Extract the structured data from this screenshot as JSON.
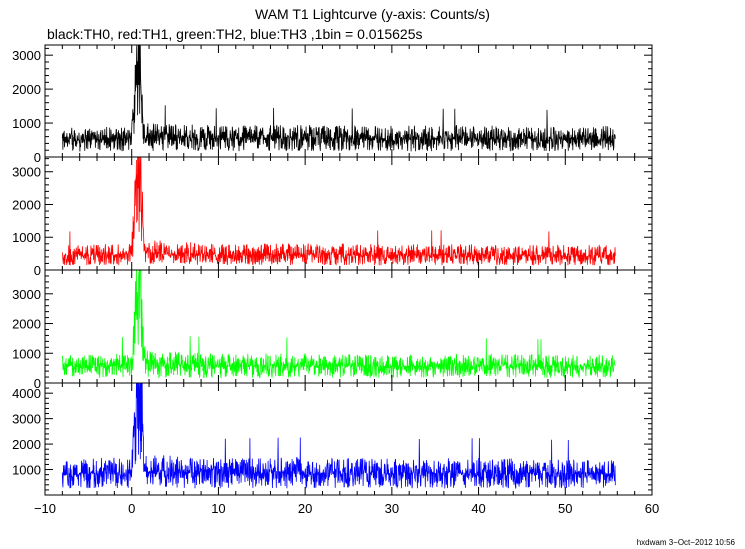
{
  "chart_data": {
    "type": "line",
    "title": "WAM T1 Lightcurve (y-axis: Counts/s)",
    "subtitle": "black:TH0, red:TH1, green:TH2, blue:TH3 ,1bin = 0.015625s",
    "xlim": [
      -10,
      60
    ],
    "x_ticks": [
      -10,
      0,
      10,
      20,
      30,
      40,
      50,
      60
    ],
    "x_tick_labels": [
      "−10",
      "0",
      "10",
      "20",
      "30",
      "40",
      "50",
      "60"
    ],
    "grid": false,
    "bin_size_s": 0.015625,
    "panels": [
      {
        "name": "TH0",
        "color": "#000000",
        "ylim": [
          0,
          3300
        ],
        "y_ticks": [
          0,
          1000,
          2000,
          3000
        ],
        "points": [
          [
            -8,
            500
          ],
          [
            0,
            550
          ],
          [
            0.3,
            1600
          ],
          [
            0.6,
            2700
          ],
          [
            0.8,
            3100
          ],
          [
            1.0,
            2500
          ],
          [
            1.2,
            1200
          ],
          [
            1.6,
            600
          ],
          [
            10,
            550
          ],
          [
            20,
            560
          ],
          [
            30,
            540
          ],
          [
            40,
            550
          ],
          [
            50,
            530
          ],
          [
            55.8,
            540
          ]
        ]
      },
      {
        "name": "TH1",
        "color": "#ff0000",
        "ylim": [
          0,
          3450
        ],
        "y_ticks": [
          0,
          1000,
          2000,
          3000
        ],
        "points": [
          [
            -8,
            450
          ],
          [
            0,
            480
          ],
          [
            0.3,
            1800
          ],
          [
            0.6,
            3000
          ],
          [
            0.9,
            3400
          ],
          [
            1.1,
            2600
          ],
          [
            1.3,
            1200
          ],
          [
            1.6,
            550
          ],
          [
            10,
            470
          ],
          [
            20,
            480
          ],
          [
            30,
            460
          ],
          [
            40,
            470
          ],
          [
            50,
            450
          ],
          [
            55.8,
            460
          ]
        ]
      },
      {
        "name": "TH2",
        "color": "#00ff00",
        "ylim": [
          0,
          3800
        ],
        "y_ticks": [
          0,
          1000,
          2000,
          3000
        ],
        "points": [
          [
            -8,
            550
          ],
          [
            0,
            600
          ],
          [
            0.3,
            2000
          ],
          [
            0.6,
            3200
          ],
          [
            0.9,
            3750
          ],
          [
            1.1,
            2800
          ],
          [
            1.3,
            1300
          ],
          [
            1.6,
            650
          ],
          [
            10,
            580
          ],
          [
            20,
            590
          ],
          [
            30,
            570
          ],
          [
            40,
            580
          ],
          [
            50,
            560
          ],
          [
            55.8,
            570
          ]
        ]
      },
      {
        "name": "TH3",
        "color": "#0000ff",
        "ylim": [
          0,
          4400
        ],
        "y_ticks": [
          1000,
          2000,
          3000,
          4000
        ],
        "points": [
          [
            -8,
            800
          ],
          [
            0,
            900
          ],
          [
            0.3,
            2600
          ],
          [
            0.6,
            3800
          ],
          [
            0.9,
            4350
          ],
          [
            1.1,
            3300
          ],
          [
            1.3,
            1700
          ],
          [
            1.6,
            950
          ],
          [
            10,
            850
          ],
          [
            20,
            870
          ],
          [
            30,
            840
          ],
          [
            40,
            860
          ],
          [
            50,
            830
          ],
          [
            55.8,
            840
          ]
        ]
      }
    ]
  },
  "footer": "hxdwam  3−Oct−2012 10:56"
}
